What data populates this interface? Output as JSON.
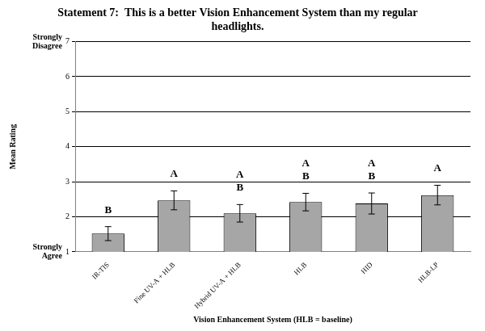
{
  "chart_data": {
    "type": "bar",
    "title": "Statement 7:  This is a better Vision Enhancement System than my regular headlights.",
    "x_label": "Vision Enhancement System (HLB = baseline)",
    "y_label": "Mean Rating",
    "categories": [
      "IR-TIS",
      "Fine UV-A + HLB",
      "Hybrid UV-A + HLB",
      "HLB",
      "HID",
      "HLB-LP"
    ],
    "values": [
      1.52,
      2.47,
      2.1,
      2.42,
      2.38,
      2.62
    ],
    "errors": [
      0.2,
      0.27,
      0.25,
      0.25,
      0.3,
      0.28
    ],
    "group_letters": [
      [
        "B"
      ],
      [
        "A"
      ],
      [
        "A",
        "B"
      ],
      [
        "A",
        "B"
      ],
      [
        "A",
        "B"
      ],
      [
        "A"
      ]
    ],
    "scale_anchors": [
      {
        "value": 7,
        "label": "Strongly Disagree"
      },
      {
        "value": 1,
        "label": "Strongly Agree"
      }
    ],
    "color": "#a6a6a6",
    "ylim": [
      1,
      7
    ],
    "yticks": [
      1,
      2,
      3,
      4,
      5,
      6,
      7
    ],
    "grid": true
  }
}
